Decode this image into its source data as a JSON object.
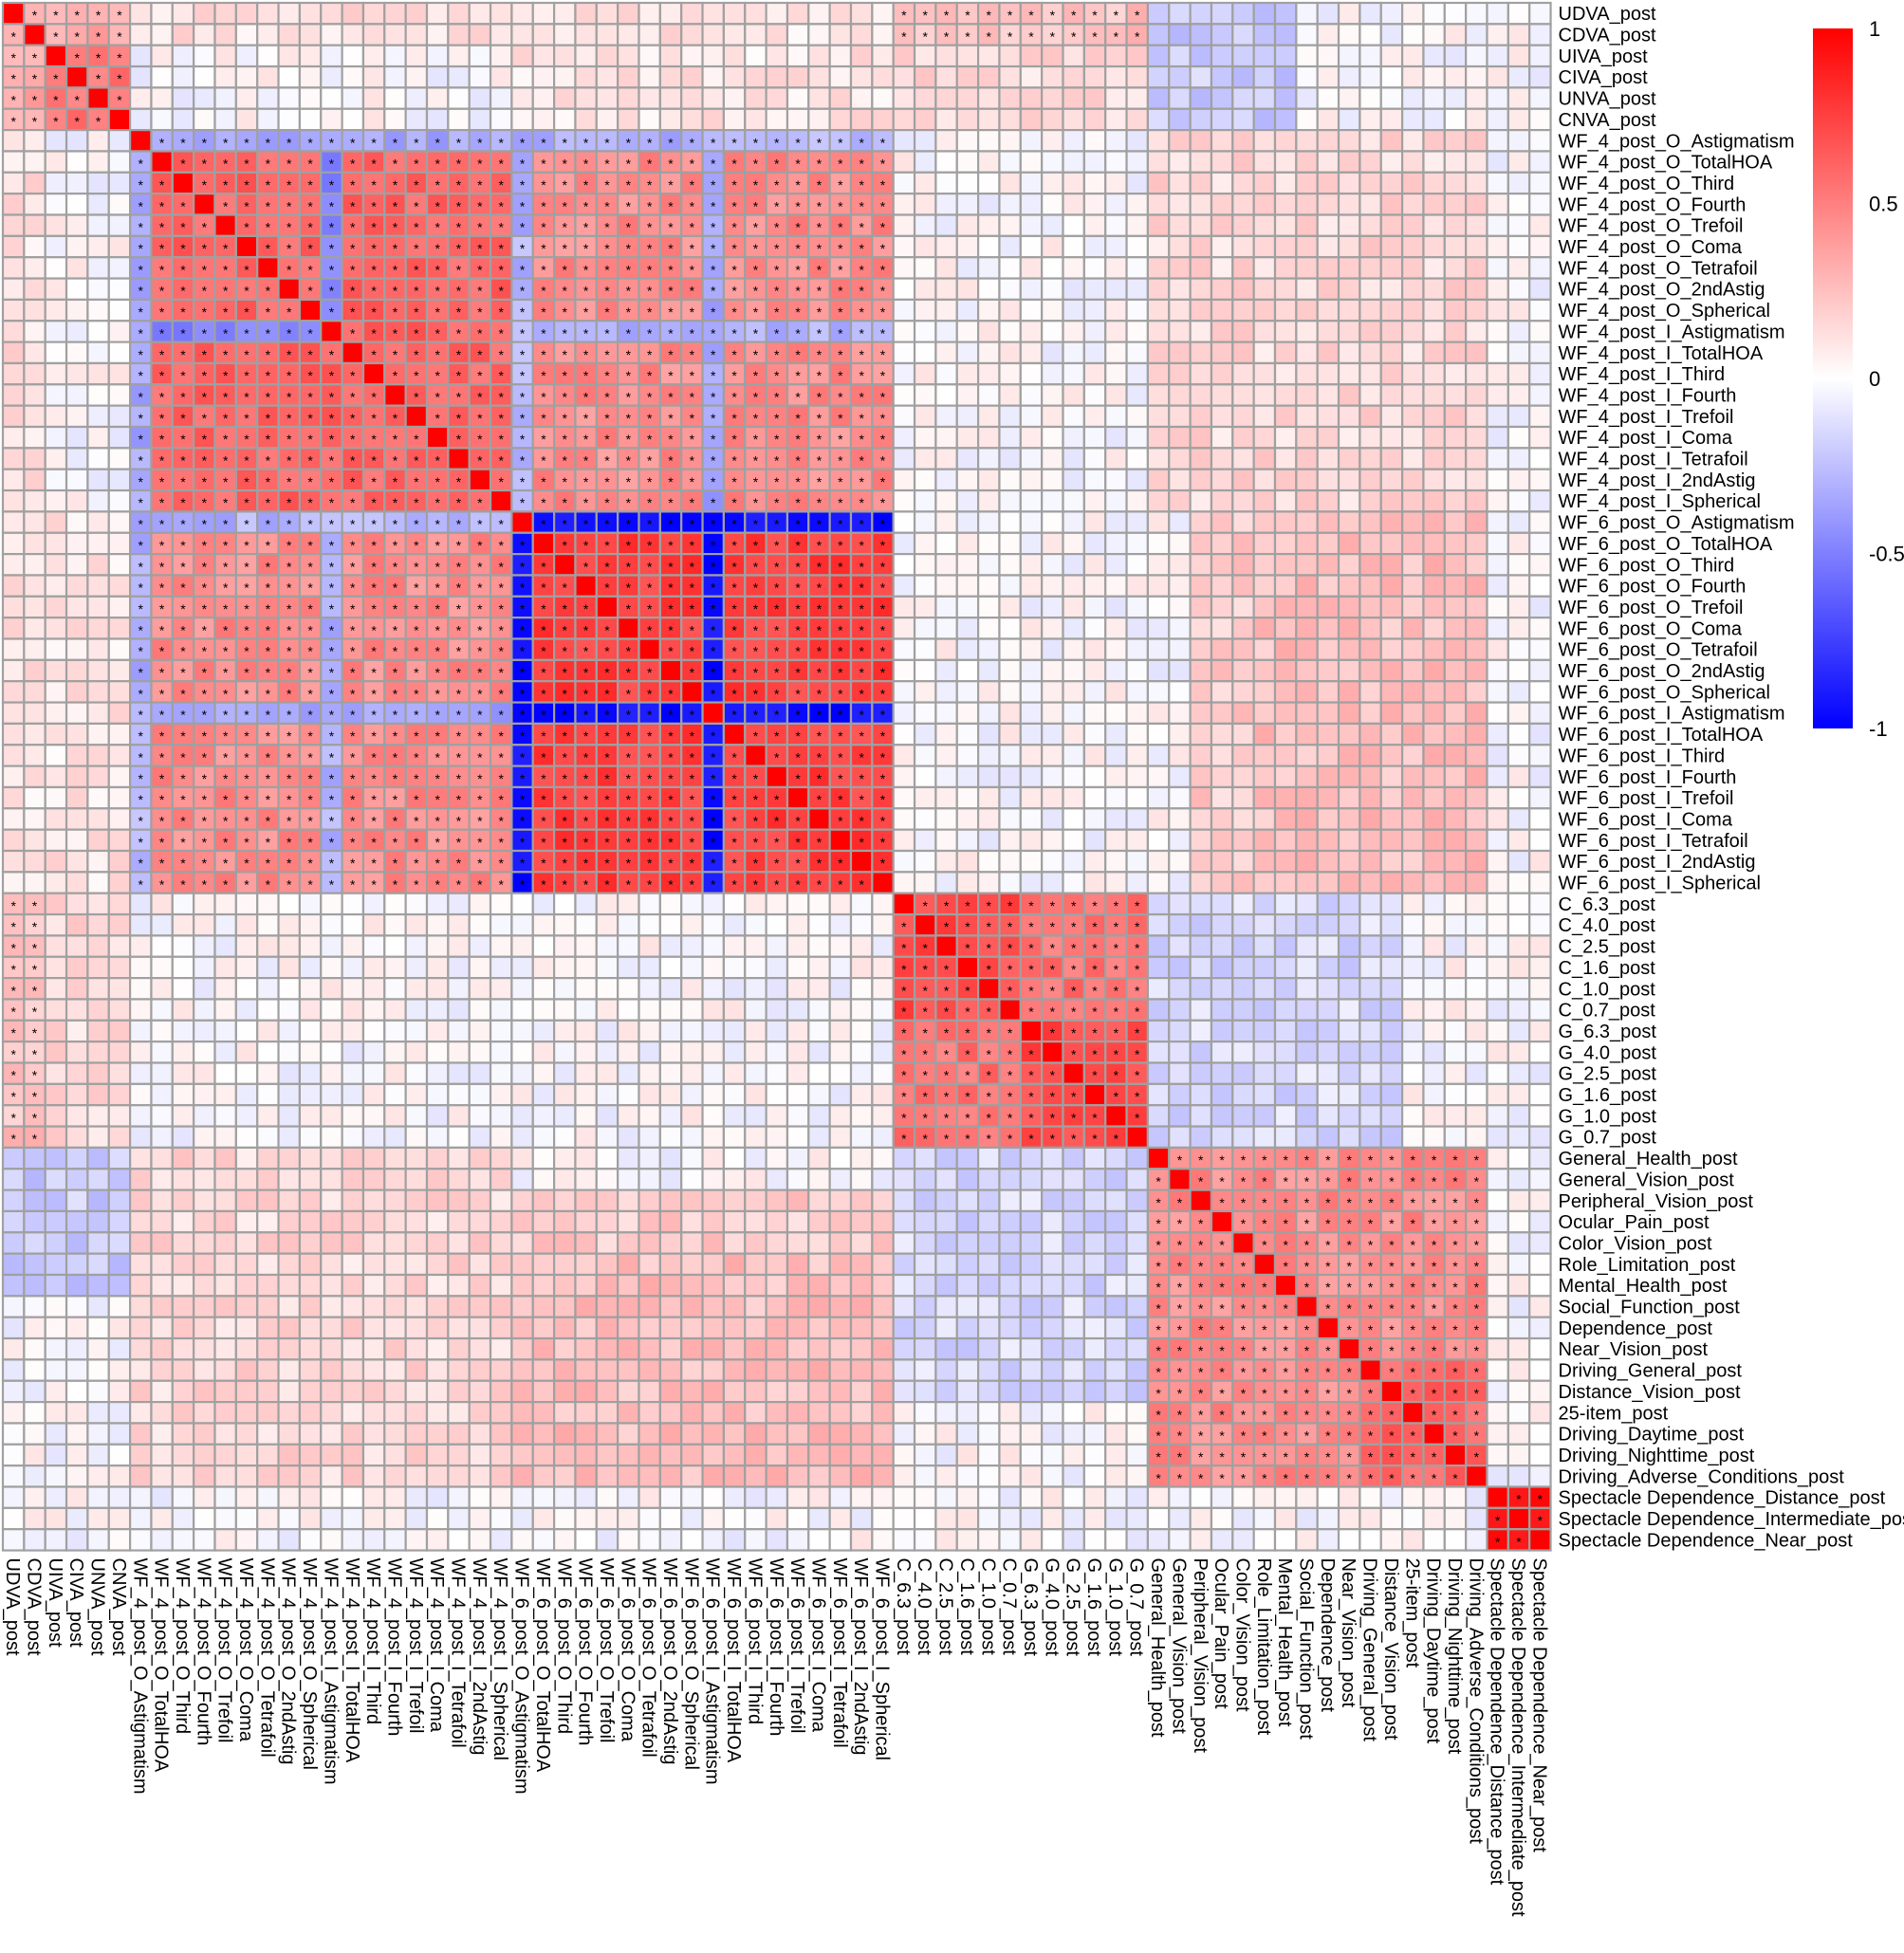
{
  "chart_data": {
    "type": "heatmap",
    "variables": [
      "UDVA_post",
      "CDVA_post",
      "UIVA_post",
      "CIVA_post",
      "UNVA_post",
      "CNVA_post",
      "WF_4_post_O_Astigmatism",
      "WF_4_post_O_TotalHOA",
      "WF_4_post_O_Third",
      "WF_4_post_O_Fourth",
      "WF_4_post_O_Trefoil",
      "WF_4_post_O_Coma",
      "WF_4_post_O_Tetrafoil",
      "WF_4_post_O_2ndAstig",
      "WF_4_post_O_Spherical",
      "WF_4_post_I_Astigmatism",
      "WF_4_post_I_TotalHOA",
      "WF_4_post_I_Third",
      "WF_4_post_I_Fourth",
      "WF_4_post_I_Trefoil",
      "WF_4_post_I_Coma",
      "WF_4_post_I_Tetrafoil",
      "WF_4_post_I_2ndAstig",
      "WF_4_post_I_Spherical",
      "WF_6_post_O_Astigmatism",
      "WF_6_post_O_TotalHOA",
      "WF_6_post_O_Third",
      "WF_6_post_O_Fourth",
      "WF_6_post_O_Trefoil",
      "WF_6_post_O_Coma",
      "WF_6_post_O_Tetrafoil",
      "WF_6_post_O_2ndAstig",
      "WF_6_post_O_Spherical",
      "WF_6_post_I_Astigmatism",
      "WF_6_post_I_TotalHOA",
      "WF_6_post_I_Third",
      "WF_6_post_I_Fourth",
      "WF_6_post_I_Trefoil",
      "WF_6_post_I_Coma",
      "WF_6_post_I_Tetrafoil",
      "WF_6_post_I_2ndAstig",
      "WF_6_post_I_Spherical",
      "C_6.3_post",
      "C_4.0_post",
      "C_2.5_post",
      "C_1.6_post",
      "C_1.0_post",
      "C_0.7_post",
      "G_6.3_post",
      "G_4.0_post",
      "G_2.5_post",
      "G_1.6_post",
      "G_1.0_post",
      "G_0.7_post",
      "General_Health_post",
      "General_Vision_post",
      "Peripheral_Vision_post",
      "Ocular_Pain_post",
      "Color_Vision_post",
      "Role_Limitation_post",
      "Mental_Health_post",
      "Social_Function_post",
      "Dependence_post",
      "Near_Vision_post",
      "Driving_General_post",
      "Distance_Vision_post",
      "25-item_post",
      "Driving_Daytime_post",
      "Driving_Nighttime_post",
      "Driving_Adverse_Conditions_post",
      "Spectacle Dependence_Distance_post",
      "Spectacle Dependence_Intermediate_post",
      "Spectacle Dependence_Near_post"
    ],
    "color_scale": {
      "min": -1,
      "max": 1,
      "colors": [
        "#0000ff",
        "#ffffff",
        "#ff0000"
      ],
      "ticks": [
        1,
        0.5,
        0,
        -0.5,
        -1
      ],
      "tick_labels": [
        "1",
        "0.5",
        "0",
        "-0.5",
        "-1"
      ]
    },
    "significance_marker": "*",
    "grid_color": "#a0a0a0",
    "blocks": [
      {
        "rows": [
          0,
          5
        ],
        "cols": [
          0,
          5
        ],
        "value": 0.55,
        "sig": true
      },
      {
        "rows": [
          7,
          23
        ],
        "cols": [
          7,
          23
        ],
        "value": 0.6,
        "sig": true
      },
      {
        "rows": [
          6,
          6
        ],
        "cols": [
          7,
          23
        ],
        "value": -0.35,
        "sig": true
      },
      {
        "rows": [
          15,
          15
        ],
        "cols": [
          7,
          14
        ],
        "value": -0.45,
        "sig": true
      },
      {
        "rows": [
          24,
          41
        ],
        "cols": [
          24,
          41
        ],
        "value": 0.75,
        "sig": true
      },
      {
        "rows": [
          24,
          24
        ],
        "cols": [
          25,
          41
        ],
        "value": -0.95,
        "sig": true
      },
      {
        "rows": [
          33,
          33
        ],
        "cols": [
          24,
          41
        ],
        "value": -0.95,
        "sig": true
      },
      {
        "rows": [
          7,
          23
        ],
        "cols": [
          24,
          41
        ],
        "value": 0.45,
        "sig": true
      },
      {
        "rows": [
          6,
          6
        ],
        "cols": [
          24,
          41
        ],
        "value": -0.3,
        "sig": true
      },
      {
        "rows": [
          15,
          15
        ],
        "cols": [
          24,
          41
        ],
        "value": -0.3,
        "sig": true
      },
      {
        "rows": [
          24,
          24
        ],
        "cols": [
          7,
          23
        ],
        "value": -0.3,
        "sig": true
      },
      {
        "rows": [
          33,
          33
        ],
        "cols": [
          7,
          23
        ],
        "value": -0.35,
        "sig": true
      },
      {
        "rows": [
          42,
          53
        ],
        "cols": [
          42,
          53
        ],
        "value": 0.7,
        "sig": true
      },
      {
        "rows": [
          0,
          5
        ],
        "cols": [
          42,
          53
        ],
        "value": 0.15,
        "sig": false
      },
      {
        "rows": [
          0,
          5
        ],
        "cols": [
          54,
          60
        ],
        "value": -0.15,
        "sig": false
      },
      {
        "rows": [
          42,
          53
        ],
        "cols": [
          54,
          65
        ],
        "value": -0.15,
        "sig": false
      },
      {
        "rows": [
          54,
          69
        ],
        "cols": [
          54,
          69
        ],
        "value": 0.45,
        "sig": true
      },
      {
        "rows": [
          70,
          72
        ],
        "cols": [
          70,
          72
        ],
        "value": 0.9,
        "sig": true
      },
      {
        "rows": [
          24,
          41
        ],
        "cols": [
          56,
          67
        ],
        "value": 0.2,
        "sig": false
      },
      {
        "rows": [
          0,
          5
        ],
        "cols": [
          0,
          1
        ],
        "value": 0.35,
        "sig": true
      },
      {
        "rows": [
          42,
          53
        ],
        "cols": [
          0,
          1
        ],
        "value": 0.25,
        "sig": true
      },
      {
        "rows": [
          7,
          23
        ],
        "cols": [
          0,
          1
        ],
        "value": 0.12,
        "sig": false
      },
      {
        "rows": [
          24,
          41
        ],
        "cols": [
          0,
          5
        ],
        "value": 0.1,
        "sig": false
      },
      {
        "rows": [
          59,
          69
        ],
        "cols": [
          24,
          41
        ],
        "value": 0.25,
        "sig": false
      },
      {
        "rows": [
          54,
          60
        ],
        "cols": [
          0,
          5
        ],
        "value": -0.2,
        "sig": false
      },
      {
        "rows": [
          42,
          47
        ],
        "cols": [
          48,
          53
        ],
        "value": 0.55,
        "sig": true
      },
      {
        "rows": [
          48,
          53
        ],
        "cols": [
          42,
          47
        ],
        "value": 0.55,
        "sig": true
      },
      {
        "rows": [
          6,
          23
        ],
        "cols": [
          54,
          69
        ],
        "value": 0.15,
        "sig": false
      },
      {
        "rows": [
          64,
          69
        ],
        "cols": [
          64,
          69
        ],
        "value": 0.6,
        "sig": true
      }
    ]
  }
}
